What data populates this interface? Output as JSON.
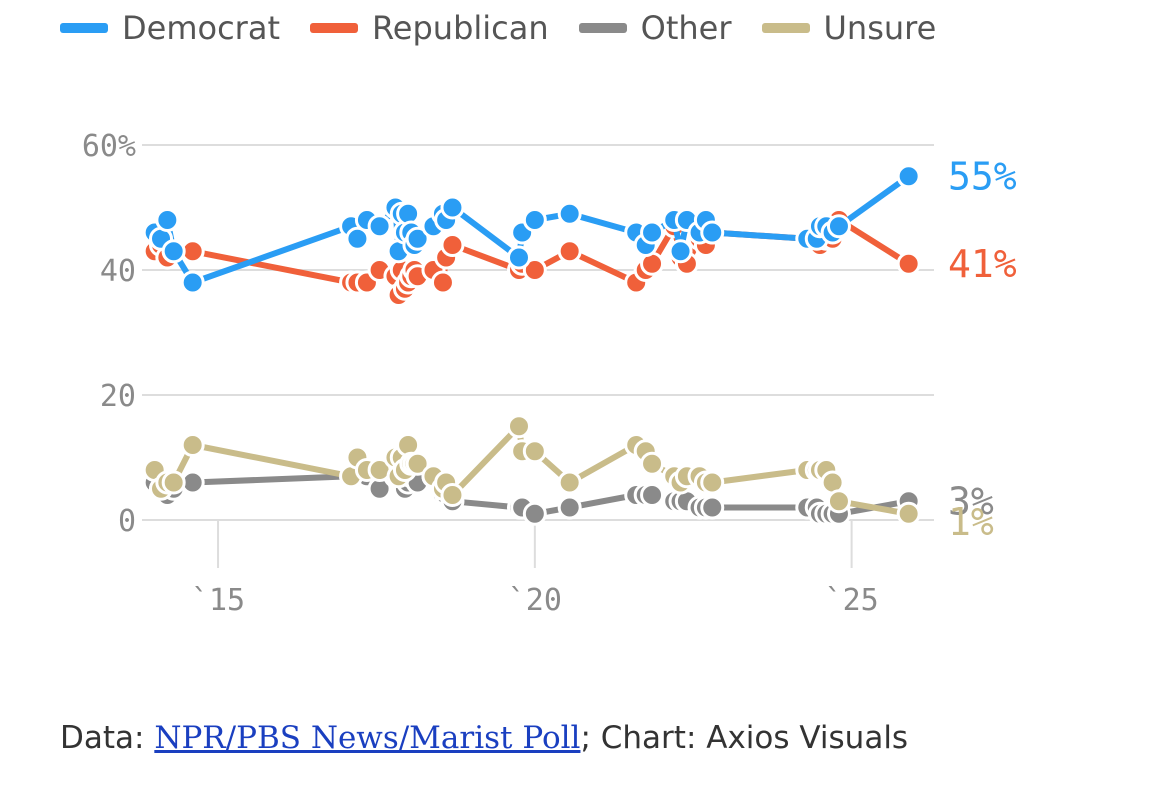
{
  "colors": {
    "Democrat": "#2a9df4",
    "Republican": "#f0603a",
    "Other": "#8a8a8a",
    "Unsure": "#c9bc8a",
    "grid": "#dddddd",
    "tick": "#8a8a8a"
  },
  "chart_data": {
    "type": "line",
    "title": "",
    "xlabel": "",
    "ylabel": "",
    "ylim": [
      0,
      60
    ],
    "xlim": [
      2013.8,
      2026.3
    ],
    "y_ticks": [
      {
        "value": 60,
        "label": "60%"
      },
      {
        "value": 40,
        "label": "40"
      },
      {
        "value": 20,
        "label": "20"
      },
      {
        "value": 0,
        "label": "0"
      }
    ],
    "x_ticks": [
      {
        "value": 2015,
        "label": "`15"
      },
      {
        "value": 2020,
        "label": "`20"
      },
      {
        "value": 2025,
        "label": "`25"
      }
    ],
    "legend": [
      "Democrat",
      "Republican",
      "Other",
      "Unsure"
    ],
    "x": [
      2014.0,
      2014.1,
      2014.2,
      2014.3,
      2014.6,
      2017.1,
      2017.2,
      2017.35,
      2017.55,
      2017.8,
      2017.85,
      2017.9,
      2017.95,
      2018.0,
      2018.05,
      2018.1,
      2018.15,
      2018.4,
      2018.55,
      2018.6,
      2018.7,
      2019.75,
      2019.8,
      2020.0,
      2020.55,
      2021.6,
      2021.75,
      2021.85,
      2022.2,
      2022.3,
      2022.4,
      2022.6,
      2022.7,
      2022.8,
      2024.3,
      2024.45,
      2024.5,
      2024.6,
      2024.7,
      2024.8,
      2025.9
    ],
    "series": [
      {
        "name": "Democrat",
        "end_label": "55%",
        "values": [
          46,
          45,
          48,
          43,
          38,
          47,
          45,
          48,
          47,
          50,
          43,
          49,
          46,
          49,
          46,
          44,
          45,
          47,
          49,
          48,
          50,
          42,
          46,
          48,
          49,
          46,
          44,
          46,
          48,
          43,
          48,
          46,
          48,
          46,
          45,
          45,
          47,
          47,
          46,
          47,
          55
        ]
      },
      {
        "name": "Republican",
        "end_label": "41%",
        "values": [
          43,
          44,
          42,
          43,
          43,
          38,
          38,
          38,
          40,
          39,
          36,
          40,
          37,
          38,
          39,
          40,
          39,
          40,
          38,
          42,
          44,
          40,
          41,
          40,
          43,
          38,
          40,
          41,
          47,
          42,
          41,
          45,
          44,
          46,
          45,
          44,
          44,
          45,
          45,
          48,
          41
        ]
      },
      {
        "name": "Other",
        "end_label": "3%",
        "values": [
          6,
          5,
          4,
          5,
          6,
          7,
          7,
          7,
          5,
          7,
          7,
          6,
          5,
          6,
          7,
          7,
          6,
          7,
          4,
          4,
          3,
          2,
          2,
          1,
          2,
          4,
          4,
          4,
          3,
          3,
          3,
          2,
          2,
          2,
          2,
          2,
          1,
          1,
          1,
          1,
          3
        ]
      },
      {
        "name": "Unsure",
        "end_label": "1%",
        "values": [
          8,
          5,
          6,
          6,
          12,
          7,
          10,
          8,
          8,
          10,
          7,
          10,
          8,
          12,
          9,
          9,
          9,
          7,
          5,
          6,
          4,
          15,
          11,
          11,
          6,
          12,
          11,
          9,
          7,
          6,
          7,
          7,
          6,
          6,
          8,
          8,
          8,
          8,
          6,
          3,
          1
        ]
      }
    ]
  },
  "footer": {
    "prefix": "Data: ",
    "link_text": "NPR/PBS News/Marist Poll",
    "suffix": "; Chart: Axios Visuals"
  }
}
